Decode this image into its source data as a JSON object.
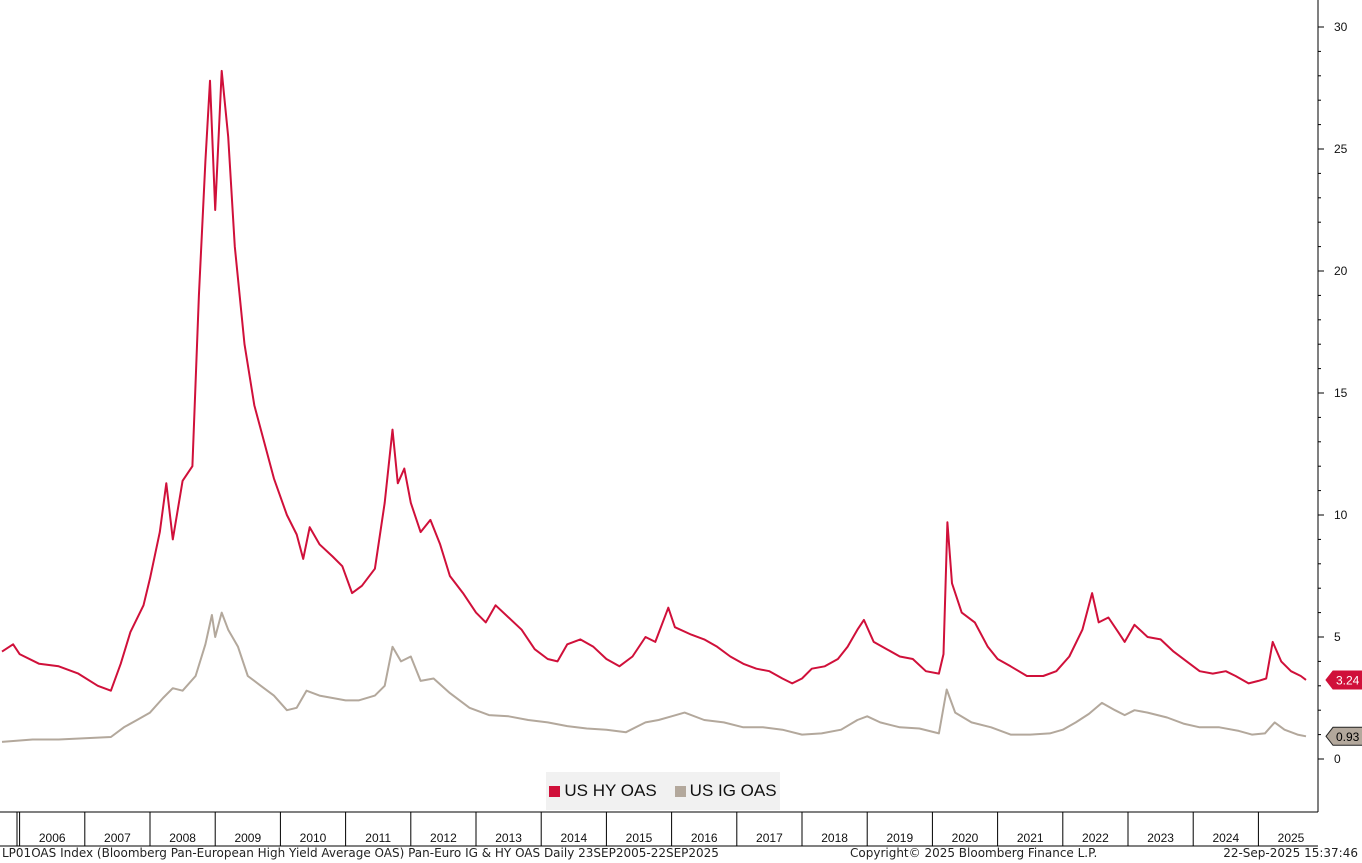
{
  "footer": {
    "left": "LP01OAS Index (Bloomberg Pan-European High Yield Average OAS) Pan-Euro IG & HY OAS  Daily 23SEP2005-22SEP2025",
    "middle": "Copyright© 2025 Bloomberg Finance L.P.",
    "right": "22-Sep-2025 15:37:46"
  },
  "chart_data": {
    "type": "line",
    "title": "",
    "xlabel": "",
    "ylabel": "",
    "x_range": [
      2005.73,
      2025.73
    ],
    "ylim": [
      -2,
      30.5
    ],
    "y_ticks": [
      0,
      5,
      10,
      15,
      20,
      25,
      30
    ],
    "x_tick_labels": [
      "2006",
      "2007",
      "2008",
      "2009",
      "2010",
      "2011",
      "2012",
      "2013",
      "2014",
      "2015",
      "2016",
      "2017",
      "2018",
      "2019",
      "2020",
      "2021",
      "2022",
      "2023",
      "2024",
      "2025"
    ],
    "grid": false,
    "legend_placement": "bottom-center",
    "series": [
      {
        "name": "US HY OAS",
        "color": "#d0103a",
        "last_value_label": "3.24",
        "points": [
          [
            2005.73,
            4.4
          ],
          [
            2005.9,
            4.7
          ],
          [
            2006.0,
            4.3
          ],
          [
            2006.3,
            3.9
          ],
          [
            2006.6,
            3.8
          ],
          [
            2006.9,
            3.5
          ],
          [
            2007.2,
            3.0
          ],
          [
            2007.4,
            2.8
          ],
          [
            2007.55,
            3.9
          ],
          [
            2007.7,
            5.2
          ],
          [
            2007.9,
            6.3
          ],
          [
            2008.0,
            7.4
          ],
          [
            2008.15,
            9.3
          ],
          [
            2008.25,
            11.3
          ],
          [
            2008.35,
            9.0
          ],
          [
            2008.5,
            11.4
          ],
          [
            2008.65,
            12.0
          ],
          [
            2008.75,
            19.0
          ],
          [
            2008.85,
            24.5
          ],
          [
            2008.92,
            27.8
          ],
          [
            2009.0,
            22.5
          ],
          [
            2009.1,
            28.2
          ],
          [
            2009.2,
            25.5
          ],
          [
            2009.3,
            21.0
          ],
          [
            2009.45,
            17.0
          ],
          [
            2009.6,
            14.5
          ],
          [
            2009.75,
            13.0
          ],
          [
            2009.9,
            11.5
          ],
          [
            2010.1,
            10.0
          ],
          [
            2010.25,
            9.2
          ],
          [
            2010.35,
            8.2
          ],
          [
            2010.45,
            9.5
          ],
          [
            2010.6,
            8.8
          ],
          [
            2010.8,
            8.3
          ],
          [
            2010.95,
            7.9
          ],
          [
            2011.1,
            6.8
          ],
          [
            2011.25,
            7.1
          ],
          [
            2011.45,
            7.8
          ],
          [
            2011.6,
            10.5
          ],
          [
            2011.72,
            13.5
          ],
          [
            2011.8,
            11.3
          ],
          [
            2011.9,
            11.9
          ],
          [
            2012.0,
            10.5
          ],
          [
            2012.15,
            9.3
          ],
          [
            2012.3,
            9.8
          ],
          [
            2012.45,
            8.8
          ],
          [
            2012.6,
            7.5
          ],
          [
            2012.8,
            6.8
          ],
          [
            2013.0,
            6.0
          ],
          [
            2013.15,
            5.6
          ],
          [
            2013.3,
            6.3
          ],
          [
            2013.5,
            5.8
          ],
          [
            2013.7,
            5.3
          ],
          [
            2013.9,
            4.5
          ],
          [
            2014.1,
            4.1
          ],
          [
            2014.25,
            4.0
          ],
          [
            2014.4,
            4.7
          ],
          [
            2014.6,
            4.9
          ],
          [
            2014.8,
            4.6
          ],
          [
            2015.0,
            4.1
          ],
          [
            2015.2,
            3.8
          ],
          [
            2015.4,
            4.2
          ],
          [
            2015.6,
            5.0
          ],
          [
            2015.75,
            4.8
          ],
          [
            2015.95,
            6.2
          ],
          [
            2016.05,
            5.4
          ],
          [
            2016.3,
            5.1
          ],
          [
            2016.5,
            4.9
          ],
          [
            2016.7,
            4.6
          ],
          [
            2016.9,
            4.2
          ],
          [
            2017.1,
            3.9
          ],
          [
            2017.3,
            3.7
          ],
          [
            2017.5,
            3.6
          ],
          [
            2017.7,
            3.3
          ],
          [
            2017.85,
            3.1
          ],
          [
            2018.0,
            3.3
          ],
          [
            2018.15,
            3.7
          ],
          [
            2018.35,
            3.8
          ],
          [
            2018.55,
            4.1
          ],
          [
            2018.7,
            4.6
          ],
          [
            2018.85,
            5.3
          ],
          [
            2018.95,
            5.7
          ],
          [
            2019.1,
            4.8
          ],
          [
            2019.3,
            4.5
          ],
          [
            2019.5,
            4.2
          ],
          [
            2019.7,
            4.1
          ],
          [
            2019.9,
            3.6
          ],
          [
            2020.1,
            3.5
          ],
          [
            2020.17,
            4.3
          ],
          [
            2020.23,
            9.7
          ],
          [
            2020.3,
            7.2
          ],
          [
            2020.45,
            6.0
          ],
          [
            2020.65,
            5.6
          ],
          [
            2020.85,
            4.6
          ],
          [
            2021.0,
            4.1
          ],
          [
            2021.2,
            3.8
          ],
          [
            2021.45,
            3.4
          ],
          [
            2021.7,
            3.4
          ],
          [
            2021.9,
            3.6
          ],
          [
            2022.1,
            4.2
          ],
          [
            2022.3,
            5.3
          ],
          [
            2022.45,
            6.8
          ],
          [
            2022.55,
            5.6
          ],
          [
            2022.7,
            5.8
          ],
          [
            2022.85,
            5.2
          ],
          [
            2022.95,
            4.8
          ],
          [
            2023.1,
            5.5
          ],
          [
            2023.3,
            5.0
          ],
          [
            2023.5,
            4.9
          ],
          [
            2023.7,
            4.4
          ],
          [
            2023.9,
            4.0
          ],
          [
            2024.1,
            3.6
          ],
          [
            2024.3,
            3.5
          ],
          [
            2024.5,
            3.6
          ],
          [
            2024.65,
            3.4
          ],
          [
            2024.85,
            3.1
          ],
          [
            2025.0,
            3.2
          ],
          [
            2025.12,
            3.3
          ],
          [
            2025.22,
            4.8
          ],
          [
            2025.35,
            4.0
          ],
          [
            2025.5,
            3.6
          ],
          [
            2025.65,
            3.4
          ],
          [
            2025.73,
            3.24
          ]
        ]
      },
      {
        "name": "US IG OAS",
        "color": "#b3a89c",
        "last_value_label": "0.93",
        "points": [
          [
            2005.73,
            0.7
          ],
          [
            2006.2,
            0.8
          ],
          [
            2006.6,
            0.8
          ],
          [
            2007.0,
            0.85
          ],
          [
            2007.4,
            0.9
          ],
          [
            2007.6,
            1.3
          ],
          [
            2007.8,
            1.6
          ],
          [
            2008.0,
            1.9
          ],
          [
            2008.2,
            2.5
          ],
          [
            2008.35,
            2.9
          ],
          [
            2008.5,
            2.8
          ],
          [
            2008.7,
            3.4
          ],
          [
            2008.85,
            4.7
          ],
          [
            2008.95,
            5.9
          ],
          [
            2009.0,
            5.0
          ],
          [
            2009.1,
            6.0
          ],
          [
            2009.2,
            5.3
          ],
          [
            2009.35,
            4.6
          ],
          [
            2009.5,
            3.4
          ],
          [
            2009.7,
            3.0
          ],
          [
            2009.9,
            2.6
          ],
          [
            2010.1,
            2.0
          ],
          [
            2010.25,
            2.1
          ],
          [
            2010.4,
            2.8
          ],
          [
            2010.6,
            2.6
          ],
          [
            2010.8,
            2.5
          ],
          [
            2011.0,
            2.4
          ],
          [
            2011.2,
            2.4
          ],
          [
            2011.45,
            2.6
          ],
          [
            2011.6,
            3.0
          ],
          [
            2011.72,
            4.6
          ],
          [
            2011.85,
            4.0
          ],
          [
            2012.0,
            4.2
          ],
          [
            2012.15,
            3.2
          ],
          [
            2012.35,
            3.3
          ],
          [
            2012.6,
            2.7
          ],
          [
            2012.9,
            2.1
          ],
          [
            2013.2,
            1.8
          ],
          [
            2013.5,
            1.75
          ],
          [
            2013.8,
            1.6
          ],
          [
            2014.1,
            1.5
          ],
          [
            2014.4,
            1.35
          ],
          [
            2014.7,
            1.25
          ],
          [
            2015.0,
            1.2
          ],
          [
            2015.3,
            1.1
          ],
          [
            2015.6,
            1.5
          ],
          [
            2015.8,
            1.6
          ],
          [
            2016.0,
            1.75
          ],
          [
            2016.2,
            1.9
          ],
          [
            2016.5,
            1.6
          ],
          [
            2016.8,
            1.5
          ],
          [
            2017.1,
            1.3
          ],
          [
            2017.4,
            1.3
          ],
          [
            2017.7,
            1.2
          ],
          [
            2018.0,
            1.0
          ],
          [
            2018.3,
            1.05
          ],
          [
            2018.6,
            1.2
          ],
          [
            2018.85,
            1.6
          ],
          [
            2019.0,
            1.75
          ],
          [
            2019.2,
            1.5
          ],
          [
            2019.5,
            1.3
          ],
          [
            2019.8,
            1.25
          ],
          [
            2020.1,
            1.05
          ],
          [
            2020.22,
            2.85
          ],
          [
            2020.35,
            1.9
          ],
          [
            2020.6,
            1.5
          ],
          [
            2020.9,
            1.3
          ],
          [
            2021.2,
            1.0
          ],
          [
            2021.5,
            1.0
          ],
          [
            2021.8,
            1.05
          ],
          [
            2022.0,
            1.2
          ],
          [
            2022.2,
            1.5
          ],
          [
            2022.4,
            1.85
          ],
          [
            2022.6,
            2.3
          ],
          [
            2022.8,
            2.0
          ],
          [
            2022.95,
            1.8
          ],
          [
            2023.1,
            2.0
          ],
          [
            2023.3,
            1.9
          ],
          [
            2023.6,
            1.7
          ],
          [
            2023.85,
            1.45
          ],
          [
            2024.1,
            1.3
          ],
          [
            2024.4,
            1.3
          ],
          [
            2024.7,
            1.15
          ],
          [
            2024.9,
            1.0
          ],
          [
            2025.1,
            1.05
          ],
          [
            2025.25,
            1.5
          ],
          [
            2025.4,
            1.2
          ],
          [
            2025.6,
            1.0
          ],
          [
            2025.73,
            0.93
          ]
        ]
      }
    ]
  }
}
